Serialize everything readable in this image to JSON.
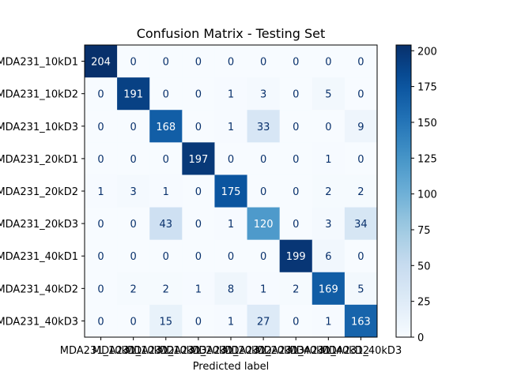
{
  "chart_data": {
    "type": "heatmap",
    "title": "Confusion Matrix - Testing Set",
    "xlabel": "Predicted label",
    "ylabel": "",
    "labels": [
      "MDA231_10kD1",
      "MDA231_10kD2",
      "MDA231_10kD3",
      "MDA231_20kD1",
      "MDA231_20kD2",
      "MDA231_20kD3",
      "MDA231_40kD1",
      "MDA231_40kD2",
      "MDA231_40kD3"
    ],
    "matrix": [
      [
        204,
        0,
        0,
        0,
        0,
        0,
        0,
        0,
        0
      ],
      [
        0,
        191,
        0,
        0,
        1,
        3,
        0,
        5,
        0
      ],
      [
        0,
        0,
        168,
        0,
        1,
        33,
        0,
        0,
        9
      ],
      [
        0,
        0,
        0,
        197,
        0,
        0,
        0,
        1,
        0
      ],
      [
        1,
        3,
        1,
        0,
        175,
        0,
        0,
        2,
        2
      ],
      [
        0,
        0,
        43,
        0,
        1,
        120,
        0,
        3,
        34
      ],
      [
        0,
        0,
        0,
        0,
        0,
        0,
        199,
        6,
        0
      ],
      [
        0,
        2,
        2,
        1,
        8,
        1,
        2,
        169,
        5
      ],
      [
        0,
        0,
        15,
        0,
        1,
        27,
        0,
        1,
        163
      ]
    ],
    "colormap": "Blues",
    "colorbar": {
      "range": [
        0,
        204
      ],
      "ticks": [
        0,
        25,
        50,
        75,
        100,
        125,
        150,
        175,
        200
      ]
    }
  }
}
